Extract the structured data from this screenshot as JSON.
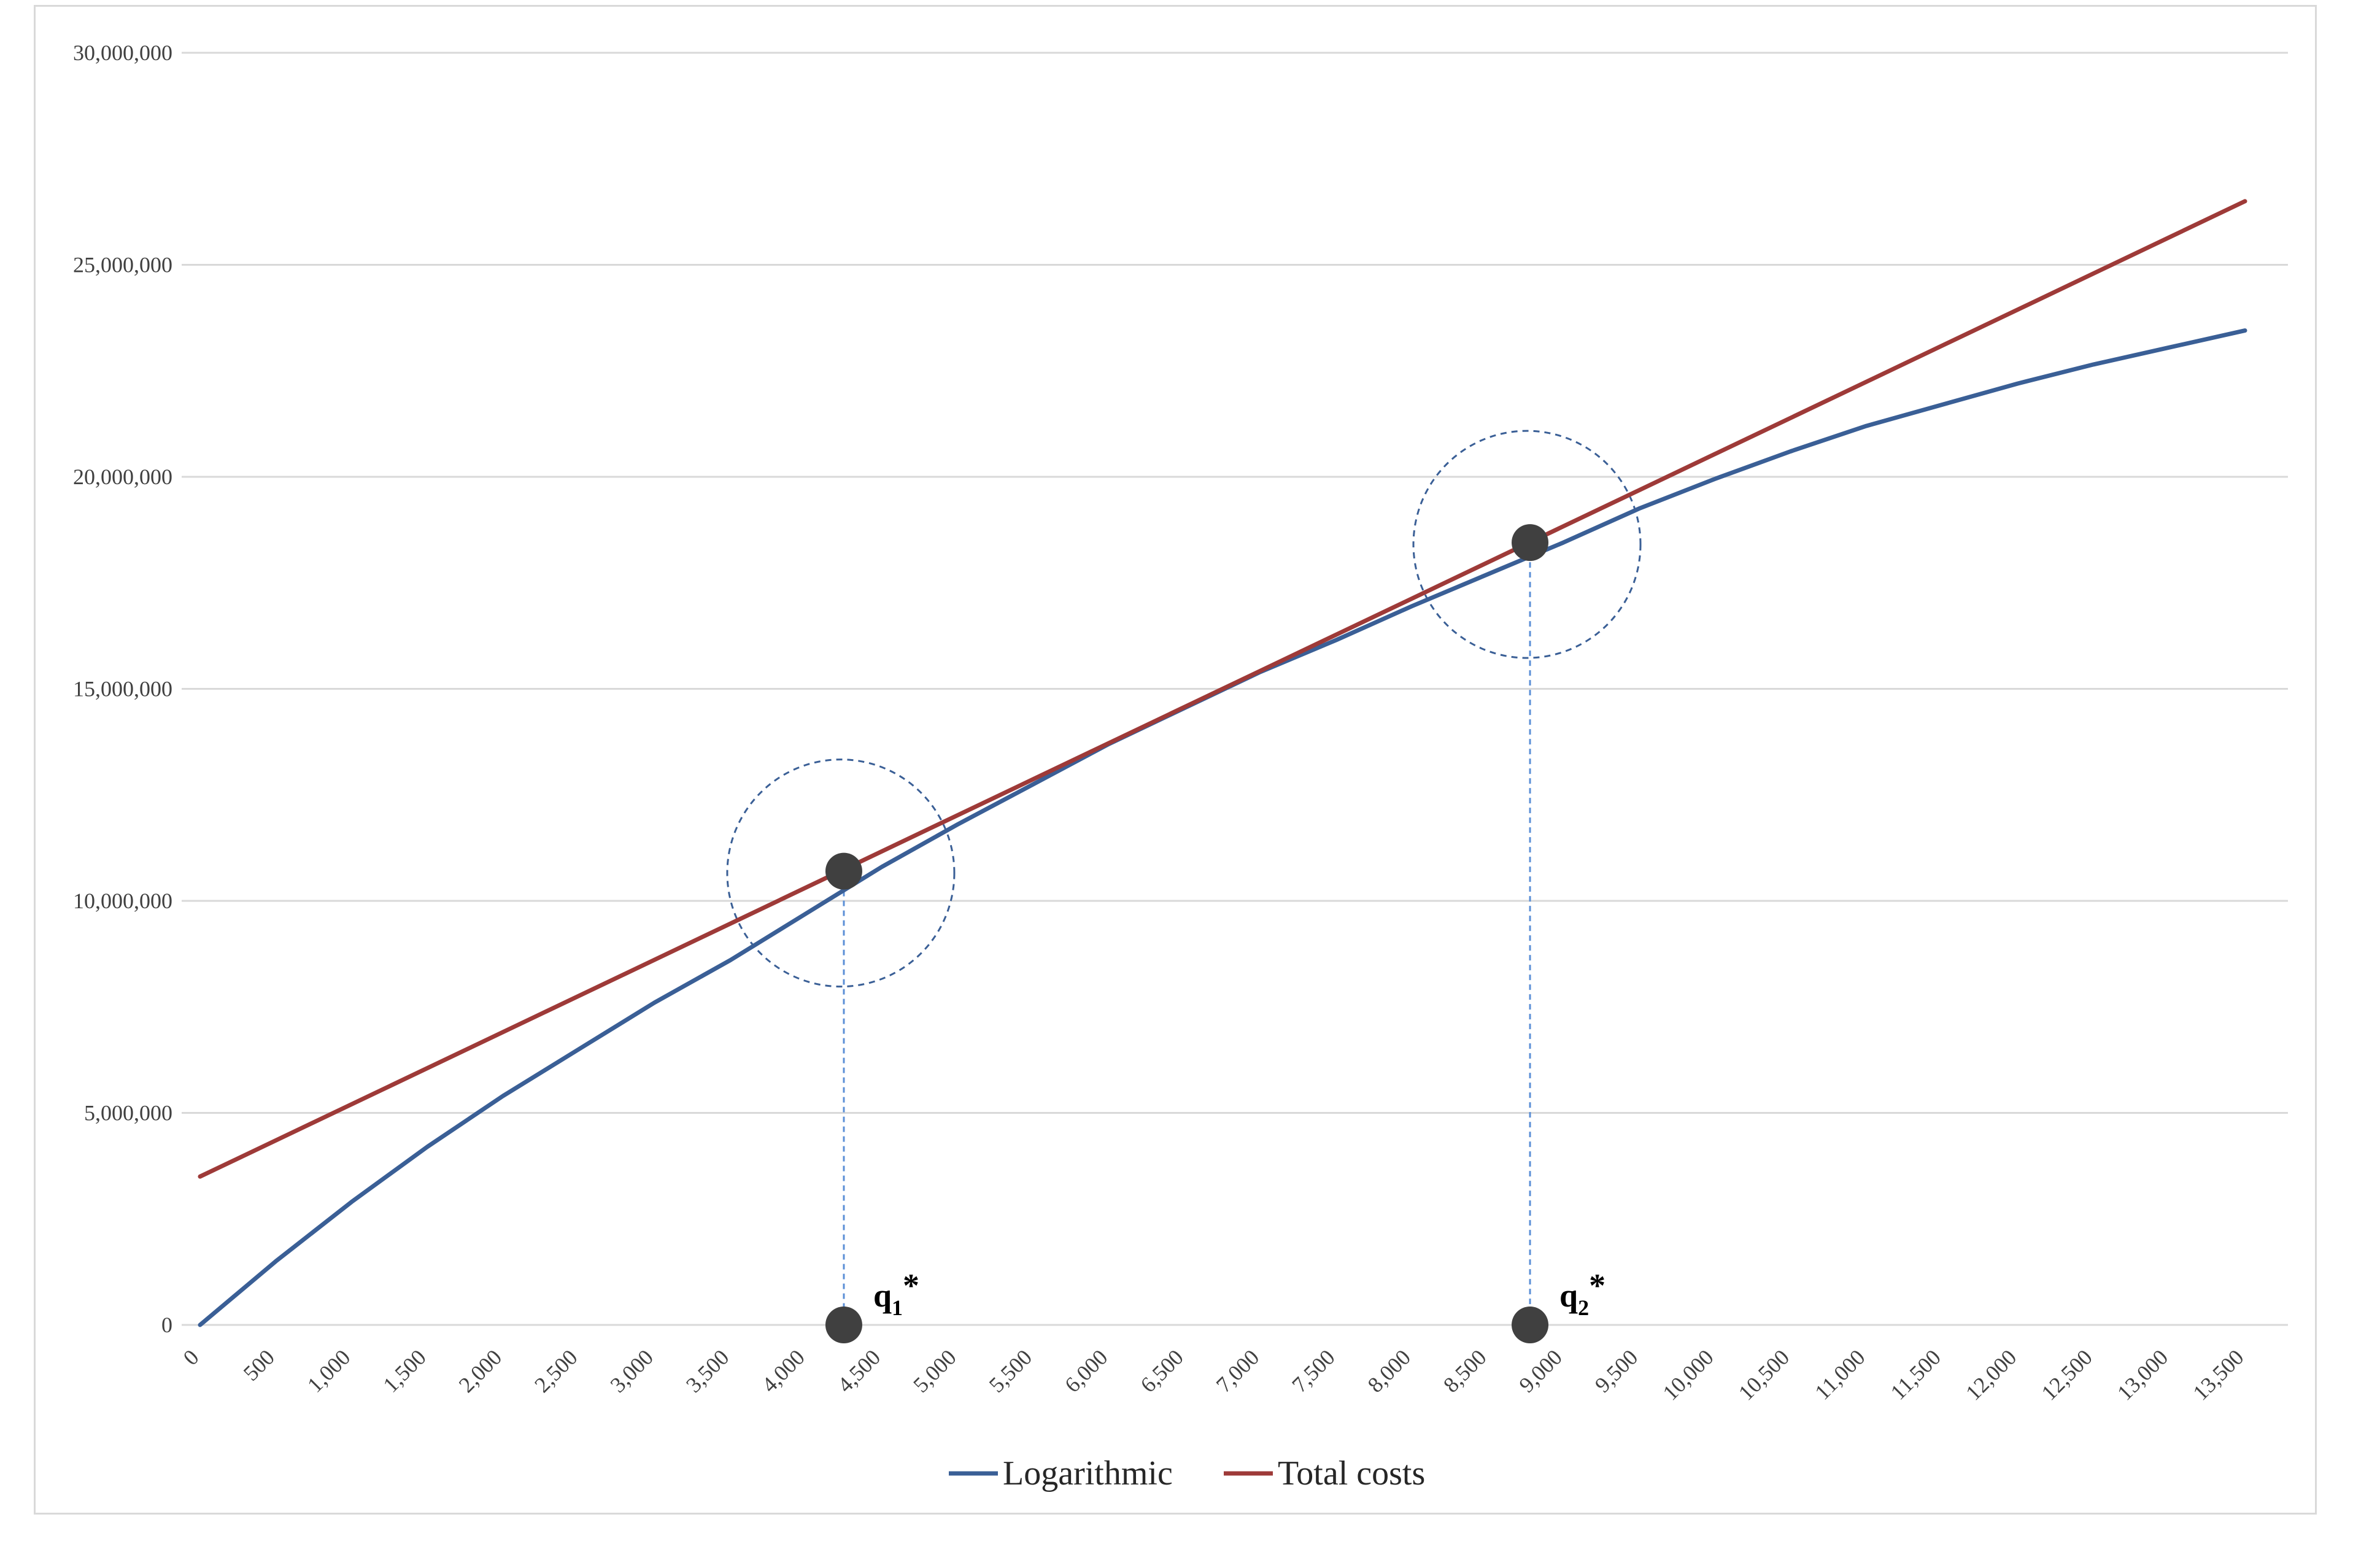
{
  "chart_data": {
    "type": "line",
    "title": "",
    "xlabel": "",
    "ylabel": "",
    "xlim": [
      0,
      13500
    ],
    "ylim": [
      0,
      30000000
    ],
    "x_ticks": [
      0,
      500,
      1000,
      1500,
      2000,
      2500,
      3000,
      3500,
      4000,
      4500,
      5000,
      5500,
      6000,
      6500,
      7000,
      7500,
      8000,
      8500,
      9000,
      9500,
      10000,
      10500,
      11000,
      11500,
      12000,
      12500,
      13000,
      13500
    ],
    "x_tick_labels": [
      "0",
      "500",
      "1,000",
      "1,500",
      "2,000",
      "2,500",
      "3,000",
      "3,500",
      "4,000",
      "4,500",
      "5,000",
      "5,500",
      "6,000",
      "6,500",
      "7,000",
      "7,500",
      "8,000",
      "8,500",
      "9,000",
      "9,500",
      "10,000",
      "10,500",
      "11,000",
      "11,500",
      "12,000",
      "12,500",
      "13,000",
      "13,500"
    ],
    "y_ticks": [
      0,
      5000000,
      10000000,
      15000000,
      20000000,
      25000000,
      30000000
    ],
    "y_tick_labels": [
      "0",
      "5,000,000",
      "10,000,000",
      "15,000,000",
      "20,000,000",
      "25,000,000",
      "30,000,000"
    ],
    "grid": "horizontal",
    "legend_position": "bottom",
    "series": [
      {
        "name": "Logarithmic",
        "color": "#3a5f96",
        "x": [
          0,
          500,
          1000,
          1500,
          2000,
          2500,
          3000,
          3500,
          4000,
          4500,
          5000,
          5500,
          6000,
          6500,
          7000,
          7500,
          8000,
          8500,
          9000,
          9500,
          10000,
          10500,
          11000,
          11500,
          12000,
          12500,
          13000,
          13500
        ],
        "y": [
          0,
          1500000,
          2900000,
          4200000,
          5400000,
          6500000,
          7600000,
          8600000,
          9700000,
          10800000,
          11800000,
          12750000,
          13700000,
          14550000,
          15400000,
          16150000,
          16950000,
          17700000,
          18450000,
          19250000,
          19950000,
          20600000,
          21200000,
          21700000,
          22200000,
          22650000,
          23050000,
          23450000
        ]
      },
      {
        "name": "Total costs",
        "color": "#9e3a38",
        "x": [
          0,
          13500
        ],
        "y": [
          3500000,
          26500000
        ]
      }
    ],
    "annotations": [
      {
        "label": "q",
        "subscript": "1",
        "suffix": "*",
        "x": 4250,
        "y": 10700000
      },
      {
        "label": "q",
        "subscript": "2",
        "suffix": "*",
        "x": 8780,
        "y": 18450000
      }
    ]
  }
}
